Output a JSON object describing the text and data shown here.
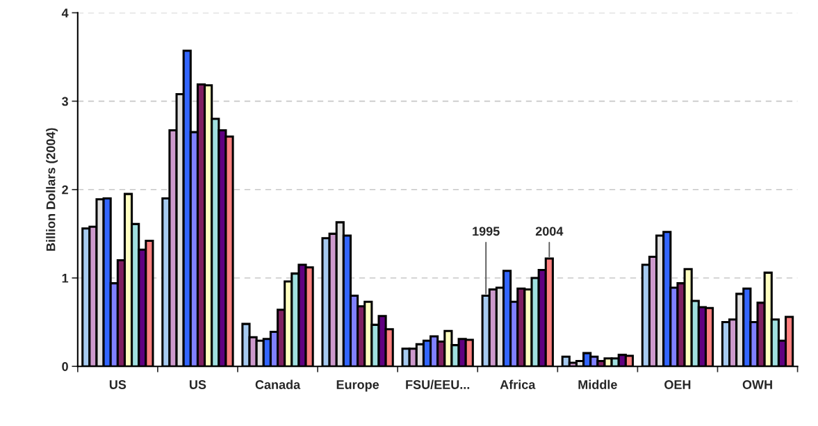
{
  "chart_data": {
    "type": "bar",
    "ylabel": "Billion Dollars (2004)",
    "categories": [
      "US",
      "US",
      "Canada",
      "Europe",
      "FSU/EEU...",
      "Africa",
      "Middle",
      "OEH",
      "OWH"
    ],
    "series": [
      {
        "color": "#a6caf0",
        "values": [
          1.56,
          1.9,
          0.48,
          1.45,
          0.2,
          0.8,
          0.11,
          1.15,
          0.5
        ]
      },
      {
        "color": "#cc99cc",
        "values": [
          1.58,
          2.67,
          0.33,
          1.5,
          0.2,
          0.87,
          0.04,
          1.24,
          0.53
        ]
      },
      {
        "color": "#e0e0e0",
        "values": [
          1.89,
          3.08,
          0.29,
          1.63,
          0.25,
          0.89,
          0.06,
          1.48,
          0.82
        ]
      },
      {
        "color": "#3366ff",
        "values": [
          1.9,
          3.57,
          0.31,
          1.48,
          0.29,
          1.08,
          0.15,
          1.52,
          0.88
        ]
      },
      {
        "color": "#8080ff",
        "values": [
          0.94,
          2.65,
          0.39,
          0.8,
          0.34,
          0.73,
          0.11,
          0.89,
          0.5
        ]
      },
      {
        "color": "#802060",
        "values": [
          1.2,
          3.19,
          0.64,
          0.68,
          0.28,
          0.88,
          0.06,
          0.94,
          0.72
        ]
      },
      {
        "color": "#ffffc0",
        "values": [
          1.95,
          3.18,
          0.96,
          0.73,
          0.4,
          0.87,
          0.09,
          1.1,
          1.06
        ]
      },
      {
        "color": "#a0e0e0",
        "values": [
          1.61,
          2.8,
          1.05,
          0.47,
          0.24,
          1.0,
          0.09,
          0.74,
          0.53
        ]
      },
      {
        "color": "#600080",
        "values": [
          1.32,
          2.67,
          1.15,
          0.57,
          0.31,
          1.09,
          0.13,
          0.67,
          0.29
        ]
      },
      {
        "color": "#ff8080",
        "values": [
          1.42,
          2.6,
          1.12,
          0.42,
          0.3,
          1.22,
          0.12,
          0.66,
          0.56
        ]
      }
    ],
    "ylim": [
      0,
      4
    ],
    "yticks": [
      0,
      1,
      2,
      3,
      4
    ],
    "grid": "y",
    "legend": false,
    "annotations": [
      {
        "text": "1995",
        "y": 0.8
      },
      {
        "text": "2004",
        "y": 1.22
      }
    ]
  }
}
